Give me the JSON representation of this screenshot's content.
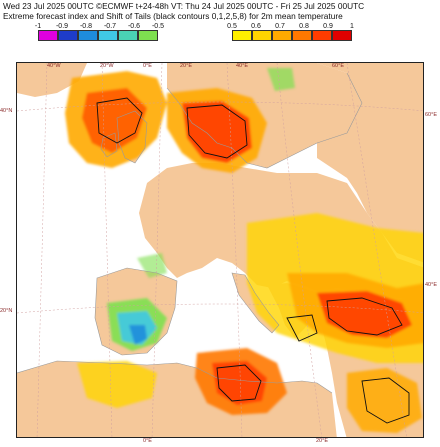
{
  "header": {
    "line1": "Wed 23 Jul 2025 00UTC ©ECMWF t+24-48h  VT: Thu 24 Jul 2025 00UTC - Fri 25 Jul 2025 00UTC",
    "line2": "Extreme forecast index and Shift of Tails (black contours 0,1,2,5,8) for 2m mean temperature"
  },
  "legend": {
    "negative": {
      "ticks": [
        "-1",
        "-0.9",
        "-0.8",
        "-0.7",
        "-0.6",
        "-0.5"
      ],
      "colors": [
        "#e000e0",
        "#1e3cc8",
        "#1e8cdc",
        "#40c8e6",
        "#4ad2b4",
        "#7ee050"
      ]
    },
    "positive": {
      "ticks": [
        "0.5",
        "0.6",
        "0.7",
        "0.8",
        "0.9",
        "1"
      ],
      "colors": [
        "#fff000",
        "#ffd400",
        "#ffaa00",
        "#ff7800",
        "#ff3c00",
        "#e00000"
      ]
    }
  },
  "map": {
    "land_color": "#f5c89a",
    "sea_color": "#ffffff",
    "coord_labels": {
      "top": [
        "40°W",
        "20°W",
        "0°E",
        "20°E",
        "40°E",
        "60°E"
      ],
      "left": [
        "40°N",
        "20°N"
      ],
      "right": [
        "60°E",
        "40°E"
      ],
      "bottom": [
        "0°E",
        "20°E"
      ]
    }
  }
}
